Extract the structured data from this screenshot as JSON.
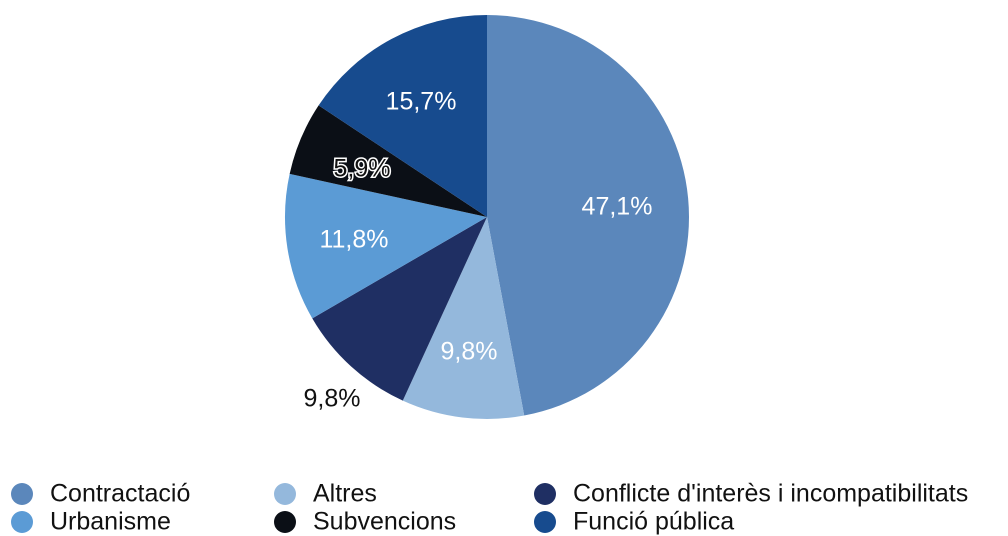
{
  "chart_data": {
    "type": "pie",
    "categories": [
      "Contractació",
      "Altres",
      "Conflicte d'interès i incompatibilitats",
      "Urbanisme",
      "Subvencions",
      "Funció pública"
    ],
    "values": [
      47.1,
      9.8,
      9.8,
      11.8,
      5.9,
      15.7
    ],
    "value_labels": [
      "47,1%",
      "9,8%",
      "9,8%",
      "11,8%",
      "5,9%",
      "15,7%"
    ],
    "colors": [
      "#5b87bb",
      "#94b8dc",
      "#1f2f63",
      "#5b9bd5",
      "#0b0f16",
      "#174b8e"
    ],
    "legend": "bottom"
  }
}
